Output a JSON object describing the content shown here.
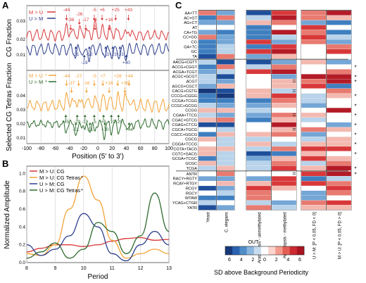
{
  "colors": {
    "red": "#d9383a",
    "blue": "#2c3e8c",
    "orange": "#f4a236",
    "green": "#2e6b2e",
    "dark_blue": "#16387a",
    "mid_blue": "#3f7fc0",
    "light_blue": "#b8d3ea",
    "light_red": "#f3b9b0",
    "dark_red": "#c8202c"
  },
  "panelA": {
    "letter": "A",
    "ylabel_top": "CG Fraction",
    "ylabel_bottom": "Selected CG Tetras Fraction",
    "xlabel": "Position (5' to 3')",
    "legend_top": [
      "M > U",
      "U > M"
    ],
    "legend_bottom": [
      "M > U",
      "U > M"
    ],
    "star": "*",
    "xticks": [
      "-100",
      "-80",
      "-60",
      "-40",
      "-20",
      "0",
      "20",
      "40",
      "60",
      "80",
      "100"
    ],
    "yticks_top": [
      "0.01",
      "0.02",
      "0.03"
    ],
    "yticks_bottom": [
      "0.01",
      "0.02",
      "0.03",
      "0.04"
    ],
    "red_labels": [
      "-44",
      "-38",
      "-26",
      "-17",
      "-5",
      "-4",
      "+6",
      "+16",
      "+25",
      "+43"
    ],
    "blue_labels": [
      "-31",
      "-12",
      "-19",
      "+11",
      "+21",
      "+31",
      "+40"
    ],
    "orange_labels": [
      "-44",
      "-37",
      "-27",
      "-16",
      "-5",
      "+7",
      "+16",
      "+28",
      "+38",
      "+44"
    ],
    "green_labels": [
      "-45",
      "-29",
      "-18",
      "-5",
      "+8",
      "+19",
      "+29",
      "-31",
      "-11",
      "+10",
      "+44"
    ]
  },
  "panelB": {
    "letter": "B",
    "ylabel": "Normalized Amplitude",
    "xlabel": "Period",
    "xticks": [
      "8",
      "9",
      "10",
      "11",
      "12",
      "13"
    ],
    "yticks": [
      "0.0",
      "0.2",
      "0.4",
      "0.6",
      "0.8",
      "1.0"
    ],
    "legend": [
      "M > U: CG",
      "M > U: CG Tetras",
      "U > M: CG",
      "U > M: CG Tetras"
    ],
    "star": "*"
  },
  "panelC": {
    "letter": "C",
    "groups": [
      [
        "AA+TT",
        "AC+GT",
        "AG+CT",
        "AT",
        "CA+TG",
        "CC+GG",
        "CG",
        "GA+TC",
        "GC",
        "TA"
      ],
      [
        "AACG+CGTT",
        "ACCG+CGGT",
        "ACGA+TCGT",
        "ACGC+GCGT",
        "ACGT",
        "AGCG+CGCT",
        "CACG+CGTG",
        "CCCG+CGGG",
        "CCGA+TCGG",
        "CCGC+GCGG",
        "CCGG",
        "CGAA+TTCG",
        "CGAC+GTCG",
        "CGAG+CTCG",
        "CGCA+TGCG",
        "CGCC+GGCG",
        "CGCG",
        "CGGA+TCCG",
        "CGTA+TACG",
        "CGTC+GACG",
        "GCGA+TCGC",
        "GCGC",
        "TCGA"
      ],
      [
        "ANTR",
        "RACY+RGTY",
        "RCAY+RTGY",
        "RCGY",
        "RGCY",
        "WTAW",
        "YCAG+CTGR",
        "YATR"
      ]
    ],
    "columns": [
      "Yeast",
      "C. elegans",
      "Arabidopsis - unmethylated",
      "Arabidopsis - methylated",
      "U > M: [P < 0.05, FD < 0]",
      "M > U: [P < 0.05, FD > 0]"
    ],
    "equals_rows": [
      14,
      16,
      21,
      24,
      33
    ],
    "star_rows": [
      11,
      13,
      14,
      17,
      19,
      21,
      23,
      25,
      27,
      29,
      32,
      33
    ],
    "star": "*",
    "scale_title": "OUT",
    "scale_label": "SD above Background Periodicity",
    "scale_ticks": [
      "6",
      "4",
      "2",
      "0",
      "2",
      "4",
      "6"
    ]
  },
  "chart_data": [
    {
      "type": "line",
      "panel": "A-top",
      "xlabel": "Position (5' to 3')",
      "ylabel": "CG Fraction",
      "xlim": [
        -100,
        100
      ],
      "series": [
        {
          "name": "M > U",
          "color": "#d9383a"
        },
        {
          "name": "U > M",
          "color": "#2c3e8c"
        }
      ],
      "annotations": [
        "-44",
        "-38",
        "-26",
        "-17",
        "-5",
        "-4",
        "+6",
        "+16",
        "+25",
        "+43",
        "-31",
        "-12",
        "-19",
        "+11",
        "+21",
        "+31",
        "+40"
      ]
    },
    {
      "type": "line",
      "panel": "A-bottom",
      "xlabel": "Position (5' to 3')",
      "ylabel": "Selected CG Tetras Fraction",
      "xlim": [
        -100,
        100
      ],
      "series": [
        {
          "name": "M > U",
          "color": "#f4a236"
        },
        {
          "name": "U > M",
          "color": "#2e6b2e"
        }
      ]
    },
    {
      "type": "line",
      "panel": "B",
      "xlabel": "Period",
      "ylabel": "Normalized Amplitude",
      "xlim": [
        8,
        13
      ],
      "ylim": [
        0,
        1
      ],
      "x": [
        8,
        8.5,
        9,
        9.5,
        10,
        10.5,
        11,
        11.5,
        12,
        12.5,
        13
      ],
      "series": [
        {
          "name": "M > U: CG",
          "values": [
            0.12,
            0.16,
            0.2,
            0.2,
            0.18,
            0.2,
            0.24,
            0.27,
            0.28,
            0.25,
            0.26
          ]
        },
        {
          "name": "M > U: CG Tetras",
          "values": [
            0.1,
            0.08,
            0.2,
            0.6,
            0.97,
            0.7,
            0.25,
            0.05,
            0.1,
            0.15,
            0.1
          ]
        },
        {
          "name": "U > M: CG",
          "values": [
            0.2,
            0.08,
            0.15,
            0.3,
            0.55,
            0.4,
            0.1,
            0.02,
            0.2,
            0.35,
            0.2
          ]
        },
        {
          "name": "U > M: CG Tetras",
          "values": [
            0.05,
            0.12,
            0.22,
            0.05,
            0.15,
            0.45,
            0.35,
            0.1,
            0.3,
            0.78,
            0.35
          ]
        }
      ]
    },
    {
      "type": "heatmap",
      "panel": "C",
      "colorbar_range": [
        -6,
        6
      ]
    }
  ]
}
